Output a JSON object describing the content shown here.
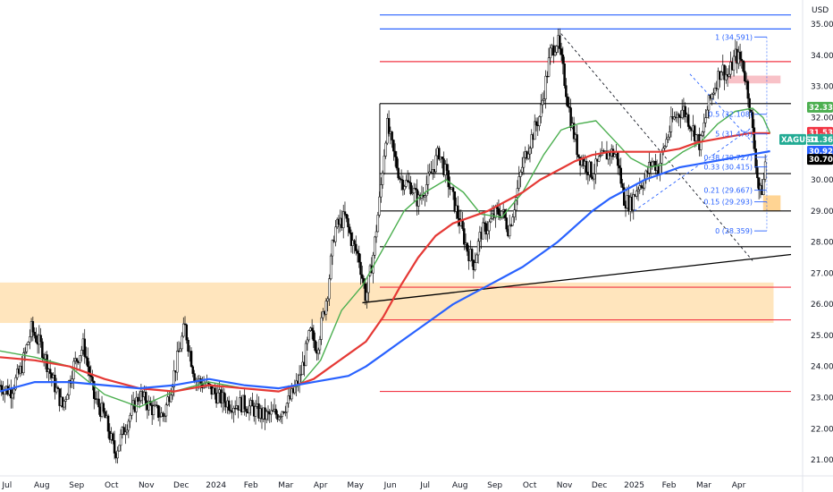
{
  "chart_data": {
    "type": "candlestick",
    "currency": "USD",
    "symbol": "XAGUSD",
    "y_ticks": [
      "35.000",
      "34.000",
      "33.000",
      "32.000",
      "31.000",
      "30.000",
      "29.000",
      "28.000",
      "27.000",
      "26.000",
      "25.000",
      "24.000",
      "23.000",
      "22.000",
      "21.000"
    ],
    "y_range": [
      20.6,
      35.55
    ],
    "x_ticks": [
      {
        "label": "Jul",
        "m": 0.2
      },
      {
        "label": "Aug",
        "m": 1.2
      },
      {
        "label": "Sep",
        "m": 2.2
      },
      {
        "label": "Oct",
        "m": 3.2
      },
      {
        "label": "Nov",
        "m": 4.2
      },
      {
        "label": "Dec",
        "m": 5.2
      },
      {
        "label": "2024",
        "m": 6.2
      },
      {
        "label": "Feb",
        "m": 7.2
      },
      {
        "label": "Mar",
        "m": 8.2
      },
      {
        "label": "Apr",
        "m": 9.2
      },
      {
        "label": "May",
        "m": 10.2
      },
      {
        "label": "Jun",
        "m": 11.2
      },
      {
        "label": "Jul",
        "m": 12.2
      },
      {
        "label": "Aug",
        "m": 13.2
      },
      {
        "label": "Sep",
        "m": 14.2
      },
      {
        "label": "Oct",
        "m": 15.2
      },
      {
        "label": "Nov",
        "m": 16.2
      },
      {
        "label": "Dec",
        "m": 17.2
      },
      {
        "label": "2025",
        "m": 18.2
      },
      {
        "label": "Feb",
        "m": 19.2
      },
      {
        "label": "Mar",
        "m": 20.2
      },
      {
        "label": "Apr",
        "m": 21.2
      }
    ],
    "m_range": [
      0,
      22.7
    ],
    "price_path": [
      [
        0,
        23.4
      ],
      [
        0.3,
        23.2
      ],
      [
        0.6,
        23.9
      ],
      [
        0.9,
        25.2
      ],
      [
        1.2,
        24.6
      ],
      [
        1.5,
        23.6
      ],
      [
        1.8,
        22.7
      ],
      [
        2.1,
        24.0
      ],
      [
        2.4,
        24.7
      ],
      [
        2.7,
        23.0
      ],
      [
        3.0,
        22.4
      ],
      [
        3.3,
        21.2
      ],
      [
        3.6,
        22.1
      ],
      [
        4.0,
        23.1
      ],
      [
        4.4,
        22.6
      ],
      [
        4.7,
        22.4
      ],
      [
        5.0,
        23.8
      ],
      [
        5.3,
        25.3
      ],
      [
        5.6,
        23.6
      ],
      [
        6.0,
        23.3
      ],
      [
        6.3,
        23.0
      ],
      [
        6.6,
        22.8
      ],
      [
        7.0,
        22.8
      ],
      [
        7.3,
        22.6
      ],
      [
        7.6,
        22.4
      ],
      [
        8.0,
        22.5
      ],
      [
        8.3,
        22.9
      ],
      [
        8.6,
        23.6
      ],
      [
        8.9,
        25.1
      ],
      [
        9.1,
        24.6
      ],
      [
        9.4,
        26.4
      ],
      [
        9.6,
        28.4
      ],
      [
        9.9,
        28.8
      ],
      [
        10.1,
        28.0
      ],
      [
        10.3,
        27.5
      ],
      [
        10.5,
        26.2
      ],
      [
        10.7,
        27.5
      ],
      [
        10.9,
        29.4
      ],
      [
        11.1,
        31.8
      ],
      [
        11.3,
        30.8
      ],
      [
        11.5,
        30.0
      ],
      [
        11.8,
        29.8
      ],
      [
        12.0,
        29.3
      ],
      [
        12.3,
        30.0
      ],
      [
        12.6,
        30.9
      ],
      [
        12.9,
        29.8
      ],
      [
        13.2,
        28.6
      ],
      [
        13.4,
        27.8
      ],
      [
        13.6,
        27.3
      ],
      [
        13.8,
        28.3
      ],
      [
        14.0,
        28.5
      ],
      [
        14.2,
        28.9
      ],
      [
        14.4,
        29.0
      ],
      [
        14.6,
        28.4
      ],
      [
        14.8,
        29.4
      ],
      [
        15.0,
        30.5
      ],
      [
        15.2,
        31.2
      ],
      [
        15.5,
        32.1
      ],
      [
        15.8,
        34.1
      ],
      [
        16.0,
        34.5
      ],
      [
        16.2,
        33.2
      ],
      [
        16.4,
        31.8
      ],
      [
        16.6,
        30.8
      ],
      [
        16.8,
        30.5
      ],
      [
        17.0,
        30.2
      ],
      [
        17.2,
        30.6
      ],
      [
        17.5,
        30.9
      ],
      [
        17.7,
        30.8
      ],
      [
        17.9,
        29.4
      ],
      [
        18.1,
        29.2
      ],
      [
        18.3,
        29.8
      ],
      [
        18.5,
        30.0
      ],
      [
        18.7,
        30.6
      ],
      [
        18.9,
        30.4
      ],
      [
        19.1,
        31.2
      ],
      [
        19.3,
        31.9
      ],
      [
        19.6,
        32.3
      ],
      [
        19.9,
        31.6
      ],
      [
        20.1,
        31.1
      ],
      [
        20.3,
        32.3
      ],
      [
        20.5,
        33.0
      ],
      [
        20.7,
        33.6
      ],
      [
        20.9,
        33.3
      ],
      [
        21.1,
        34.0
      ],
      [
        21.3,
        33.8
      ],
      [
        21.5,
        32.6
      ],
      [
        21.65,
        31.0
      ],
      [
        21.8,
        29.5
      ],
      [
        21.9,
        29.8
      ],
      [
        22.0,
        31.1
      ]
    ],
    "ma_green_path": [
      [
        0,
        24.5
      ],
      [
        1.0,
        24.3
      ],
      [
        2.0,
        24.0
      ],
      [
        3.0,
        23.1
      ],
      [
        4.0,
        22.7
      ],
      [
        5.0,
        23.2
      ],
      [
        6.0,
        23.5
      ],
      [
        7.0,
        23.3
      ],
      [
        8.0,
        23.2
      ],
      [
        8.6,
        23.4
      ],
      [
        9.2,
        24.2
      ],
      [
        9.8,
        25.8
      ],
      [
        10.4,
        26.6
      ],
      [
        11.0,
        27.8
      ],
      [
        11.6,
        29.0
      ],
      [
        12.2,
        29.6
      ],
      [
        12.8,
        30.0
      ],
      [
        13.3,
        29.6
      ],
      [
        13.8,
        28.9
      ],
      [
        14.4,
        28.8
      ],
      [
        15.0,
        29.6
      ],
      [
        15.6,
        30.8
      ],
      [
        16.1,
        31.6
      ],
      [
        16.6,
        31.8
      ],
      [
        17.1,
        31.9
      ],
      [
        17.6,
        31.3
      ],
      [
        18.1,
        30.7
      ],
      [
        18.6,
        30.4
      ],
      [
        19.1,
        30.5
      ],
      [
        19.6,
        30.9
      ],
      [
        20.1,
        31.2
      ],
      [
        20.6,
        31.8
      ],
      [
        21.1,
        32.2
      ],
      [
        21.6,
        32.3
      ],
      [
        21.9,
        32.0
      ],
      [
        22.1,
        31.5
      ]
    ],
    "ma_red_path": [
      [
        0,
        24.3
      ],
      [
        1.0,
        24.2
      ],
      [
        2.0,
        24.0
      ],
      [
        3.0,
        23.6
      ],
      [
        4.0,
        23.3
      ],
      [
        5.0,
        23.2
      ],
      [
        6.0,
        23.4
      ],
      [
        7.0,
        23.3
      ],
      [
        8.0,
        23.2
      ],
      [
        9.0,
        23.6
      ],
      [
        9.5,
        24.0
      ],
      [
        10.0,
        24.4
      ],
      [
        10.5,
        24.8
      ],
      [
        11.0,
        25.6
      ],
      [
        11.5,
        26.6
      ],
      [
        12.0,
        27.5
      ],
      [
        12.5,
        28.2
      ],
      [
        13.0,
        28.6
      ],
      [
        13.5,
        28.8
      ],
      [
        14.0,
        29.0
      ],
      [
        14.5,
        29.3
      ],
      [
        15.0,
        29.6
      ],
      [
        15.5,
        30.0
      ],
      [
        16.0,
        30.3
      ],
      [
        16.5,
        30.6
      ],
      [
        17.0,
        30.8
      ],
      [
        17.5,
        30.9
      ],
      [
        18.0,
        30.9
      ],
      [
        18.5,
        30.9
      ],
      [
        19.0,
        30.9
      ],
      [
        19.5,
        31.0
      ],
      [
        20.0,
        31.2
      ],
      [
        20.5,
        31.3
      ],
      [
        21.0,
        31.4
      ],
      [
        21.5,
        31.5
      ],
      [
        22.1,
        31.5
      ]
    ],
    "ma_blue_path": [
      [
        0,
        23.2
      ],
      [
        1.0,
        23.5
      ],
      [
        2.0,
        23.5
      ],
      [
        3.0,
        23.4
      ],
      [
        4.0,
        23.3
      ],
      [
        5.0,
        23.4
      ],
      [
        6.0,
        23.6
      ],
      [
        7.0,
        23.4
      ],
      [
        8.0,
        23.3
      ],
      [
        9.0,
        23.5
      ],
      [
        10.0,
        23.7
      ],
      [
        10.5,
        24.0
      ],
      [
        11.0,
        24.4
      ],
      [
        11.5,
        24.8
      ],
      [
        12.0,
        25.2
      ],
      [
        12.5,
        25.6
      ],
      [
        13.0,
        26.0
      ],
      [
        13.5,
        26.3
      ],
      [
        14.0,
        26.6
      ],
      [
        14.5,
        26.9
      ],
      [
        15.0,
        27.2
      ],
      [
        15.5,
        27.6
      ],
      [
        16.0,
        28.0
      ],
      [
        16.5,
        28.5
      ],
      [
        17.0,
        29.0
      ],
      [
        17.5,
        29.4
      ],
      [
        18.0,
        29.7
      ],
      [
        18.5,
        30.0
      ],
      [
        19.0,
        30.2
      ],
      [
        19.5,
        30.4
      ],
      [
        20.0,
        30.5
      ],
      [
        20.5,
        30.6
      ],
      [
        21.0,
        30.7
      ],
      [
        21.5,
        30.8
      ],
      [
        22.1,
        30.92
      ]
    ],
    "h_lines": [
      {
        "y": 35.3,
        "from": 10.9,
        "to": 22.7,
        "color": "#2962ff"
      },
      {
        "y": 34.85,
        "from": 10.9,
        "to": 22.7,
        "color": "#2962ff"
      },
      {
        "y": 33.8,
        "from": 10.9,
        "to": 22.7,
        "color": "#f23645"
      },
      {
        "y": 32.45,
        "from": 10.9,
        "to": 22.7,
        "color": "#000000"
      },
      {
        "y": 30.2,
        "from": 10.9,
        "to": 22.7,
        "color": "#000000"
      },
      {
        "y": 29.0,
        "from": 10.9,
        "to": 22.7,
        "color": "#000000"
      },
      {
        "y": 27.85,
        "from": 10.9,
        "to": 22.7,
        "color": "#000000"
      },
      {
        "y": 26.55,
        "from": 10.9,
        "to": 22.7,
        "color": "#f23645"
      },
      {
        "y": 25.5,
        "from": 10.9,
        "to": 22.7,
        "color": "#f23645"
      },
      {
        "y": 23.2,
        "from": 10.9,
        "to": 22.7,
        "color": "#f23645"
      }
    ],
    "trendlines": [
      {
        "x1": 10.4,
        "y1": 26.05,
        "x2": 22.7,
        "y2": 27.6,
        "color": "#000000",
        "dash": false
      },
      {
        "x1": 16.1,
        "y1": 34.7,
        "x2": 21.6,
        "y2": 27.4,
        "color": "#131722",
        "dash": true
      },
      {
        "x1": 18.2,
        "y1": 29.0,
        "x2": 21.6,
        "y2": 31.7,
        "color": "#2962ff",
        "dash": true
      },
      {
        "x1": 19.8,
        "y1": 33.4,
        "x2": 21.6,
        "y2": 31.2,
        "color": "#2962ff",
        "dash": true
      }
    ],
    "zones": [
      {
        "y1": 26.7,
        "y2": 25.4,
        "from": 0,
        "to": 22.2,
        "color": "#ffe0b2"
      },
      {
        "y1": 33.35,
        "y2": 33.1,
        "from": 20.9,
        "to": 22.4,
        "color": "#f7b6bd"
      },
      {
        "y1": 29.5,
        "y2": 29.0,
        "from": 21.9,
        "to": 22.4,
        "color": "#ffcc80"
      }
    ],
    "fib_levels": [
      {
        "label": "1 (34.591)",
        "y": 34.591
      },
      {
        "label": "0.5 (32.108)",
        "y": 32.108
      },
      {
        "label": "5 (31.475)",
        "y": 31.475
      },
      {
        "label": "0.38 (30.727)",
        "y": 30.727
      },
      {
        "label": "0.33 (30.415)",
        "y": 30.415
      },
      {
        "label": "0.21 (29.667)",
        "y": 29.667
      },
      {
        "label": "0.15 (29.293)",
        "y": 29.293
      },
      {
        "label": "0 (28.359)",
        "y": 28.359
      }
    ],
    "fib_x": 21.75,
    "price_badges": [
      {
        "label": "32.332",
        "y": 32.332,
        "color": "#4caf50"
      },
      {
        "label": "31.530",
        "y": 31.53,
        "color": "#f23645"
      },
      {
        "label": "31.365",
        "y": 31.3,
        "color": "#22ab94"
      },
      {
        "label": "30.920",
        "y": 30.92,
        "color": "#2962ff"
      },
      {
        "label": "30.702",
        "y": 30.66,
        "color": "#000000"
      }
    ]
  }
}
